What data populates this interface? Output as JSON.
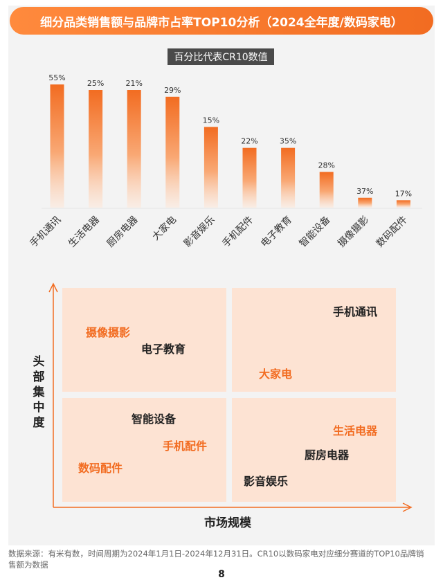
{
  "header": {
    "title": "细分品类销售额与品牌市占率TOP10分析（2024全年度/数码家电）"
  },
  "chart_data": {
    "type": "bar",
    "title": "百分比代表CR10数值",
    "categories": [
      "手机通讯",
      "生活电器",
      "厨房电器",
      "大家电",
      "影音娱乐",
      "手机配件",
      "电子教育",
      "智能设备",
      "摄像摄影",
      "数码配件"
    ],
    "values": [
      55,
      25,
      21,
      29,
      15,
      22,
      35,
      28,
      37,
      17
    ],
    "value_labels": [
      "55%",
      "25%",
      "21%",
      "29%",
      "15%",
      "22%",
      "35%",
      "28%",
      "37%",
      "17%"
    ],
    "relative_bar_height": [
      1.0,
      0.955,
      0.955,
      0.9,
      0.655,
      0.485,
      0.485,
      0.29,
      0.08,
      0.06
    ],
    "bar_color": "#f26c21"
  },
  "matrix": {
    "y_label": "头部集中度",
    "x_label": "市场规模",
    "quadrants": {
      "top_left": [
        {
          "text": "摄像摄影",
          "color": "orange"
        },
        {
          "text": "电子教育",
          "color": "black"
        }
      ],
      "top_right": [
        {
          "text": "手机通讯",
          "color": "black"
        },
        {
          "text": "大家电",
          "color": "orange"
        }
      ],
      "bottom_left": [
        {
          "text": "智能设备",
          "color": "black"
        },
        {
          "text": "手机配件",
          "color": "orange"
        },
        {
          "text": "数码配件",
          "color": "orange"
        }
      ],
      "bottom_right": [
        {
          "text": "生活电器",
          "color": "orange"
        },
        {
          "text": "厨房电器",
          "color": "black"
        },
        {
          "text": "影音娱乐",
          "color": "black"
        }
      ]
    }
  },
  "footer": {
    "source": "数据来源：有米有数，时间周期为2024年1月1日-2024年12月31日。CR10以数码家电对应细分赛道的TOP10品牌销售额为数据",
    "page_number": "8"
  }
}
